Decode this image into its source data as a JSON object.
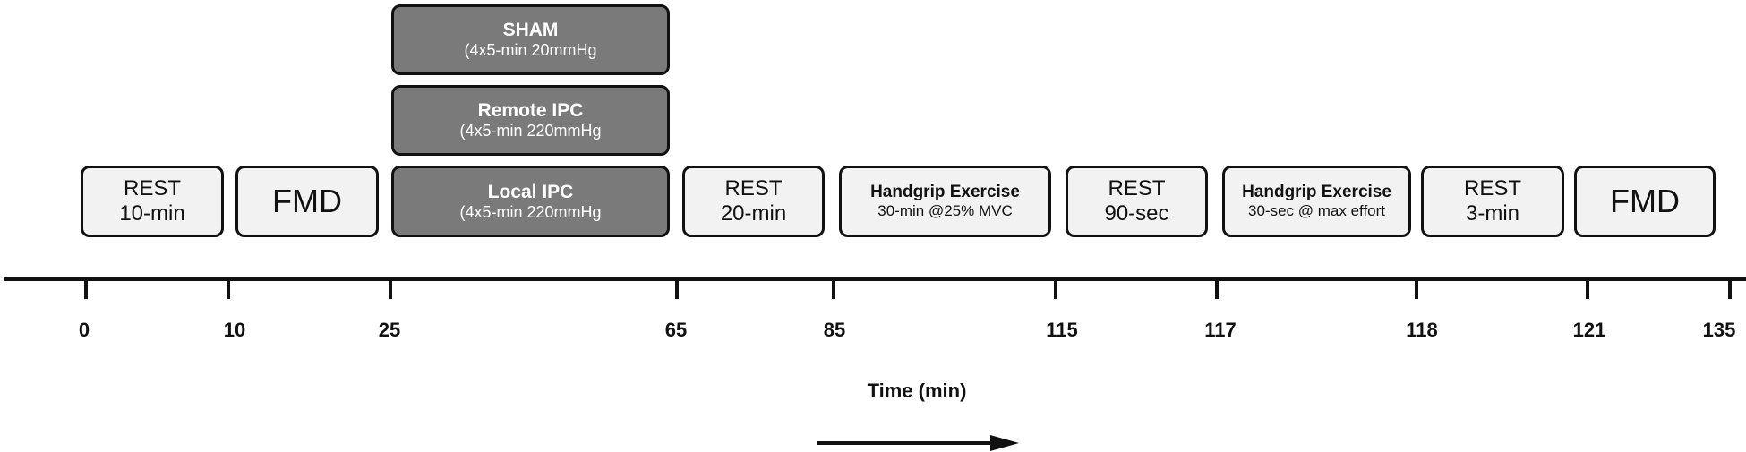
{
  "boxes": {
    "rest1": {
      "l1": "REST",
      "l2": "10-min"
    },
    "fmd1": {
      "l1": "FMD"
    },
    "local_ipc": {
      "l1": "Local IPC",
      "l2": "(4x5-min 220mmHg"
    },
    "remote_ipc": {
      "l1": "Remote IPC",
      "l2": "(4x5-min 220mmHg"
    },
    "sham": {
      "l1": "SHAM",
      "l2": "(4x5-min 20mmHg"
    },
    "rest2": {
      "l1": "REST",
      "l2": "20-min"
    },
    "handgrip1": {
      "l1": "Handgrip Exercise",
      "l2": "30-min @25% MVC"
    },
    "rest3": {
      "l1": "REST",
      "l2": "90-sec"
    },
    "handgrip2": {
      "l1": "Handgrip Exercise",
      "l2": "30-sec @ max effort"
    },
    "rest4": {
      "l1": "REST",
      "l2": "3-min"
    },
    "fmd2": {
      "l1": "FMD"
    }
  },
  "axis": {
    "ticks": [
      "0",
      "10",
      "25",
      "65",
      "85",
      "115",
      "117",
      "118",
      "121",
      "135"
    ],
    "title": "Time (min)"
  }
}
